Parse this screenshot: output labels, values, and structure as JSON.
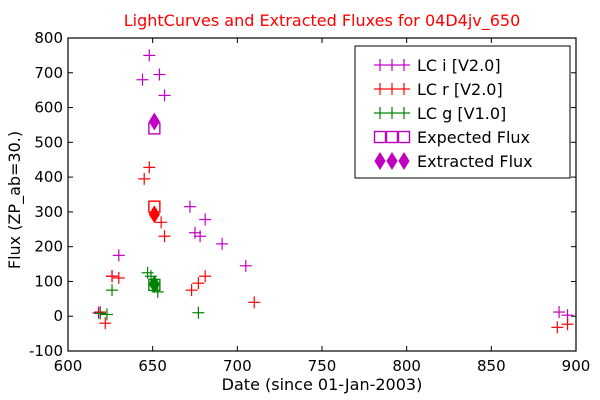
{
  "chart_data": {
    "type": "scatter",
    "title": "LightCurves and Extracted Fluxes for 04D4jv_650",
    "xlabel": "Date (since 01-Jan-2003)",
    "ylabel": "Flux (ZP_ab=30.)",
    "xlim": [
      600,
      900
    ],
    "ylim": [
      -100,
      800
    ],
    "xticks": [
      "600",
      "650",
      "700",
      "750",
      "800",
      "850",
      "900"
    ],
    "yticks": [
      "-100",
      "0",
      "100",
      "200",
      "300",
      "400",
      "500",
      "600",
      "700",
      "800"
    ],
    "grid": false,
    "legend_position": "top-right",
    "series": [
      {
        "name": "LC i [V2.0]",
        "marker": "plus",
        "color": "#c000c0",
        "points": [
          [
            618,
            10
          ],
          [
            626,
            115
          ],
          [
            630,
            175
          ],
          [
            644,
            680
          ],
          [
            648,
            750
          ],
          [
            654,
            695
          ],
          [
            657,
            635
          ],
          [
            672,
            315
          ],
          [
            675,
            240
          ],
          [
            678,
            230
          ],
          [
            681,
            278
          ],
          [
            691,
            208
          ],
          [
            705,
            145
          ],
          [
            890,
            12
          ],
          [
            895,
            3
          ]
        ]
      },
      {
        "name": "LC r [V2.0]",
        "marker": "plus",
        "color": "#ff0000",
        "points": [
          [
            619,
            12
          ],
          [
            622,
            -20
          ],
          [
            626,
            115
          ],
          [
            630,
            110
          ],
          [
            645,
            395
          ],
          [
            648,
            428
          ],
          [
            655,
            270
          ],
          [
            657,
            230
          ],
          [
            673,
            75
          ],
          [
            677,
            95
          ],
          [
            681,
            115
          ],
          [
            710,
            40
          ],
          [
            889,
            -32
          ],
          [
            895,
            -23
          ]
        ]
      },
      {
        "name": "LC g [V1.0]",
        "marker": "plus",
        "color": "#008000",
        "points": [
          [
            619,
            8
          ],
          [
            623,
            5
          ],
          [
            626,
            75
          ],
          [
            647,
            125
          ],
          [
            649,
            115
          ],
          [
            653,
            70
          ],
          [
            677,
            10
          ]
        ]
      },
      {
        "name": "Expected Flux",
        "marker": "square",
        "color": "#c000c0",
        "points": [
          [
            651,
            540
          ],
          [
            651,
            315
          ],
          [
            651,
            90
          ]
        ],
        "point_colors": [
          "#c000c0",
          "#ff0000",
          "#008000"
        ]
      },
      {
        "name": "Extracted Flux",
        "marker": "diamond",
        "color": "#c000c0",
        "points": [
          [
            651,
            560
          ],
          [
            651,
            293
          ],
          [
            651,
            92
          ]
        ],
        "point_colors": [
          "#c000c0",
          "#ff0000",
          "#008000"
        ]
      }
    ]
  }
}
